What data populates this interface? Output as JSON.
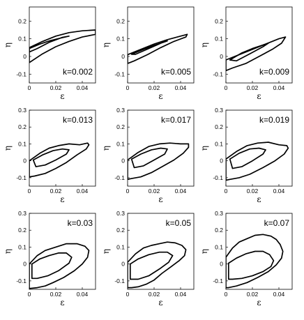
{
  "chart_data": [
    {
      "type": "line",
      "label": "k=0.002",
      "xlabel": "ε",
      "ylabel": "η",
      "xlim": [
        0,
        0.05
      ],
      "ylim": [
        -0.15,
        0.28
      ],
      "xticks": [
        "0",
        "0.02",
        "0.04"
      ],
      "yticks": [
        "-0.1",
        "0",
        "0.1",
        "0.2"
      ],
      "series": [
        {
          "x": [
            0,
            0.01,
            0.02,
            0.03,
            0.04,
            0.05,
            0.05,
            0.04,
            0.03,
            0.02,
            0.01,
            0,
            0
          ],
          "y": [
            0.05,
            0.085,
            0.115,
            0.135,
            0.145,
            0.15,
            0.125,
            0.11,
            0.085,
            0.055,
            0.015,
            -0.035,
            0.05
          ]
        },
        {
          "x": [
            0,
            0.008,
            0.016,
            0.024,
            0.03,
            0.025,
            0.015,
            0.006,
            0,
            0
          ],
          "y": [
            0.045,
            0.07,
            0.09,
            0.105,
            0.115,
            0.108,
            0.08,
            0.045,
            0.025,
            0.045
          ]
        }
      ]
    },
    {
      "type": "line",
      "label": "k=0.005",
      "xlabel": "ε",
      "ylabel": "η",
      "xlim": [
        0,
        0.05
      ],
      "ylim": [
        -0.15,
        0.28
      ],
      "xticks": [
        "0",
        "0.02",
        "0.04"
      ],
      "yticks": [
        "-0.1",
        "0",
        "0.1",
        "0.2"
      ],
      "series": [
        {
          "x": [
            0,
            0.01,
            0.02,
            0.03,
            0.04,
            0.045,
            0.044,
            0.035,
            0.025,
            0.015,
            0.005,
            0,
            0
          ],
          "y": [
            0.01,
            0.04,
            0.07,
            0.095,
            0.115,
            0.125,
            0.11,
            0.085,
            0.05,
            0.01,
            -0.025,
            -0.04,
            0.01
          ]
        },
        {
          "x": [
            0.003,
            0.012,
            0.02,
            0.027,
            0.03,
            0.026,
            0.016,
            0.006,
            0.003
          ],
          "y": [
            0.012,
            0.04,
            0.063,
            0.08,
            0.088,
            0.078,
            0.045,
            0.012,
            0.012
          ]
        }
      ]
    },
    {
      "type": "line",
      "label": "k=0.009",
      "xlabel": "ε",
      "ylabel": "η",
      "xlim": [
        0,
        0.05
      ],
      "ylim": [
        -0.15,
        0.28
      ],
      "xticks": [
        "0",
        "0.02",
        "0.04"
      ],
      "yticks": [
        "-0.1",
        "0",
        "0.1",
        "0.2"
      ],
      "series": [
        {
          "x": [
            0,
            0.01,
            0.02,
            0.03,
            0.04,
            0.045,
            0.042,
            0.035,
            0.025,
            0.015,
            0.005,
            0,
            0
          ],
          "y": [
            -0.02,
            0.01,
            0.04,
            0.07,
            0.1,
            0.11,
            0.075,
            0.04,
            0,
            -0.04,
            -0.065,
            -0.08,
            -0.02
          ]
        },
        {
          "x": [
            0.003,
            0.012,
            0.02,
            0.028,
            0.032,
            0.028,
            0.018,
            0.008,
            0.003
          ],
          "y": [
            -0.02,
            0.02,
            0.045,
            0.065,
            0.075,
            0.055,
            0.015,
            -0.025,
            -0.02
          ]
        }
      ]
    },
    {
      "type": "line",
      "label": "k=0.013",
      "xlabel": "ε",
      "ylabel": "η",
      "xlim": [
        0,
        0.05
      ],
      "ylim": [
        -0.15,
        0.3
      ],
      "xticks": [
        "0",
        "0.02",
        "0.04"
      ],
      "yticks": [
        "-0.1",
        "0",
        "0.1",
        "0.2",
        "0.3"
      ],
      "series": [
        {
          "x": [
            0,
            0.008,
            0.015,
            0.022,
            0.03,
            0.038,
            0.044,
            0.045,
            0.043,
            0.036,
            0.028,
            0.02,
            0.012,
            0.004,
            0,
            0
          ],
          "y": [
            0,
            0.045,
            0.075,
            0.09,
            0.1,
            0.095,
            0.105,
            0.095,
            0.07,
            0.035,
            -0.01,
            -0.045,
            -0.075,
            -0.09,
            -0.095,
            0
          ]
        },
        {
          "x": [
            0.003,
            0.01,
            0.018,
            0.025,
            0.03,
            0.028,
            0.02,
            0.012,
            0.005,
            0.003
          ],
          "y": [
            0.005,
            0.035,
            0.06,
            0.07,
            0.065,
            0.04,
            0.005,
            -0.025,
            -0.035,
            0.005
          ]
        }
      ]
    },
    {
      "type": "line",
      "label": "k=0.017",
      "xlabel": "ε",
      "ylabel": "η",
      "xlim": [
        0,
        0.05
      ],
      "ylim": [
        -0.15,
        0.3
      ],
      "xticks": [
        "0",
        "0.02",
        "0.04"
      ],
      "yticks": [
        "-0.1",
        "0",
        "0.1",
        "0.2",
        "0.3"
      ],
      "series": [
        {
          "x": [
            0,
            0.008,
            0.016,
            0.024,
            0.032,
            0.04,
            0.046,
            0.046,
            0.042,
            0.035,
            0.026,
            0.018,
            0.01,
            0.003,
            0,
            0
          ],
          "y": [
            0.005,
            0.05,
            0.085,
            0.1,
            0.105,
            0.1,
            0.1,
            0.08,
            0.045,
            0.005,
            -0.035,
            -0.07,
            -0.095,
            -0.105,
            -0.11,
            0.005
          ]
        },
        {
          "x": [
            0.003,
            0.01,
            0.018,
            0.025,
            0.03,
            0.028,
            0.02,
            0.012,
            0.005,
            0.003
          ],
          "y": [
            0.01,
            0.04,
            0.065,
            0.075,
            0.07,
            0.04,
            0.005,
            -0.03,
            -0.04,
            0.01
          ]
        }
      ]
    },
    {
      "type": "line",
      "label": "k=0.019",
      "xlabel": "ε",
      "ylabel": "η",
      "xlim": [
        0,
        0.05
      ],
      "ylim": [
        -0.15,
        0.3
      ],
      "xticks": [
        "0",
        "0.02",
        "0.04"
      ],
      "yticks": [
        "-0.1",
        "0",
        "0.1",
        "0.2",
        "0.3"
      ],
      "series": [
        {
          "x": [
            0,
            0.008,
            0.016,
            0.024,
            0.032,
            0.04,
            0.046,
            0.047,
            0.044,
            0.037,
            0.028,
            0.018,
            0.01,
            0.003,
            0,
            0
          ],
          "y": [
            0.01,
            0.055,
            0.09,
            0.105,
            0.11,
            0.095,
            0.09,
            0.075,
            0.04,
            0,
            -0.04,
            -0.08,
            -0.1,
            -0.11,
            -0.115,
            0.01
          ]
        },
        {
          "x": [
            0.003,
            0.01,
            0.018,
            0.025,
            0.03,
            0.028,
            0.02,
            0.012,
            0.005,
            0.003
          ],
          "y": [
            0.01,
            0.045,
            0.07,
            0.075,
            0.065,
            0.04,
            0,
            -0.035,
            -0.045,
            0.01
          ]
        }
      ]
    },
    {
      "type": "line",
      "label": "k=0.03",
      "xlabel": "ε",
      "ylabel": "η",
      "xlim": [
        0,
        0.05
      ],
      "ylim": [
        -0.15,
        0.3
      ],
      "xticks": [
        "0",
        "0.02",
        "0.04"
      ],
      "yticks": [
        "-0.1",
        "0",
        "0.1",
        "0.2",
        "0.3"
      ],
      "series": [
        {
          "x": [
            0,
            0.006,
            0.012,
            0.02,
            0.028,
            0.036,
            0.042,
            0.045,
            0.044,
            0.04,
            0.034,
            0.026,
            0.018,
            0.012,
            0.006,
            0,
            0
          ],
          "y": [
            0,
            0.05,
            0.08,
            0.1,
            0.12,
            0.12,
            0.105,
            0.08,
            0.04,
            0,
            -0.04,
            -0.08,
            -0.11,
            -0.13,
            -0.14,
            -0.145,
            0
          ]
        },
        {
          "x": [
            0.002,
            0.008,
            0.015,
            0.022,
            0.028,
            0.032,
            0.03,
            0.022,
            0.014,
            0.006,
            0.002,
            0.002
          ],
          "y": [
            0,
            0.03,
            0.05,
            0.065,
            0.065,
            0.04,
            0.005,
            -0.04,
            -0.07,
            -0.085,
            -0.085,
            0
          ]
        }
      ]
    },
    {
      "type": "line",
      "label": "k=0.05",
      "xlabel": "ε",
      "ylabel": "η",
      "xlim": [
        0,
        0.05
      ],
      "ylim": [
        -0.15,
        0.3
      ],
      "xticks": [
        "0",
        "0.02",
        "0.04"
      ],
      "yticks": [
        "-0.1",
        "0",
        "0.1",
        "0.2",
        "0.3"
      ],
      "series": [
        {
          "x": [
            0,
            0.006,
            0.012,
            0.018,
            0.024,
            0.03,
            0.036,
            0.041,
            0.044,
            0.043,
            0.039,
            0.033,
            0.026,
            0.02,
            0.014,
            0.008,
            0.003,
            0,
            0
          ],
          "y": [
            0.01,
            0.06,
            0.095,
            0.11,
            0.12,
            0.13,
            0.125,
            0.11,
            0.085,
            0.05,
            0.02,
            -0.015,
            -0.055,
            -0.095,
            -0.12,
            -0.135,
            -0.14,
            -0.14,
            0.01
          ]
        },
        {
          "x": [
            0.002,
            0.008,
            0.016,
            0.024,
            0.03,
            0.034,
            0.031,
            0.024,
            0.016,
            0.008,
            0.002,
            0.002
          ],
          "y": [
            0,
            0.03,
            0.055,
            0.07,
            0.07,
            0.05,
            0.01,
            -0.03,
            -0.07,
            -0.09,
            -0.09,
            0
          ]
        }
      ]
    },
    {
      "type": "line",
      "label": "k=0.07",
      "xlabel": "ε",
      "ylabel": "η",
      "xlim": [
        0,
        0.05
      ],
      "ylim": [
        -0.15,
        0.3
      ],
      "xticks": [
        "0",
        "0.02",
        "0.04"
      ],
      "yticks": [
        "-0.1",
        "0",
        "0.1",
        "0.2",
        "0.3"
      ],
      "series": [
        {
          "x": [
            0,
            0.005,
            0.01,
            0.016,
            0.022,
            0.028,
            0.034,
            0.038,
            0.041,
            0.043,
            0.042,
            0.038,
            0.032,
            0.024,
            0.016,
            0.008,
            0.002,
            0,
            0
          ],
          "y": [
            0.04,
            0.095,
            0.13,
            0.15,
            0.17,
            0.175,
            0.165,
            0.145,
            0.115,
            0.075,
            0.035,
            -0.005,
            -0.045,
            -0.08,
            -0.11,
            -0.13,
            -0.14,
            -0.14,
            0.04
          ]
        },
        {
          "x": [
            0.002,
            0.008,
            0.015,
            0.022,
            0.028,
            0.033,
            0.036,
            0.034,
            0.028,
            0.02,
            0.012,
            0.005,
            0.002,
            0.002
          ],
          "y": [
            0.005,
            0.035,
            0.06,
            0.075,
            0.075,
            0.055,
            0.02,
            -0.015,
            -0.045,
            -0.07,
            -0.085,
            -0.09,
            -0.09,
            0.005
          ]
        }
      ]
    }
  ]
}
